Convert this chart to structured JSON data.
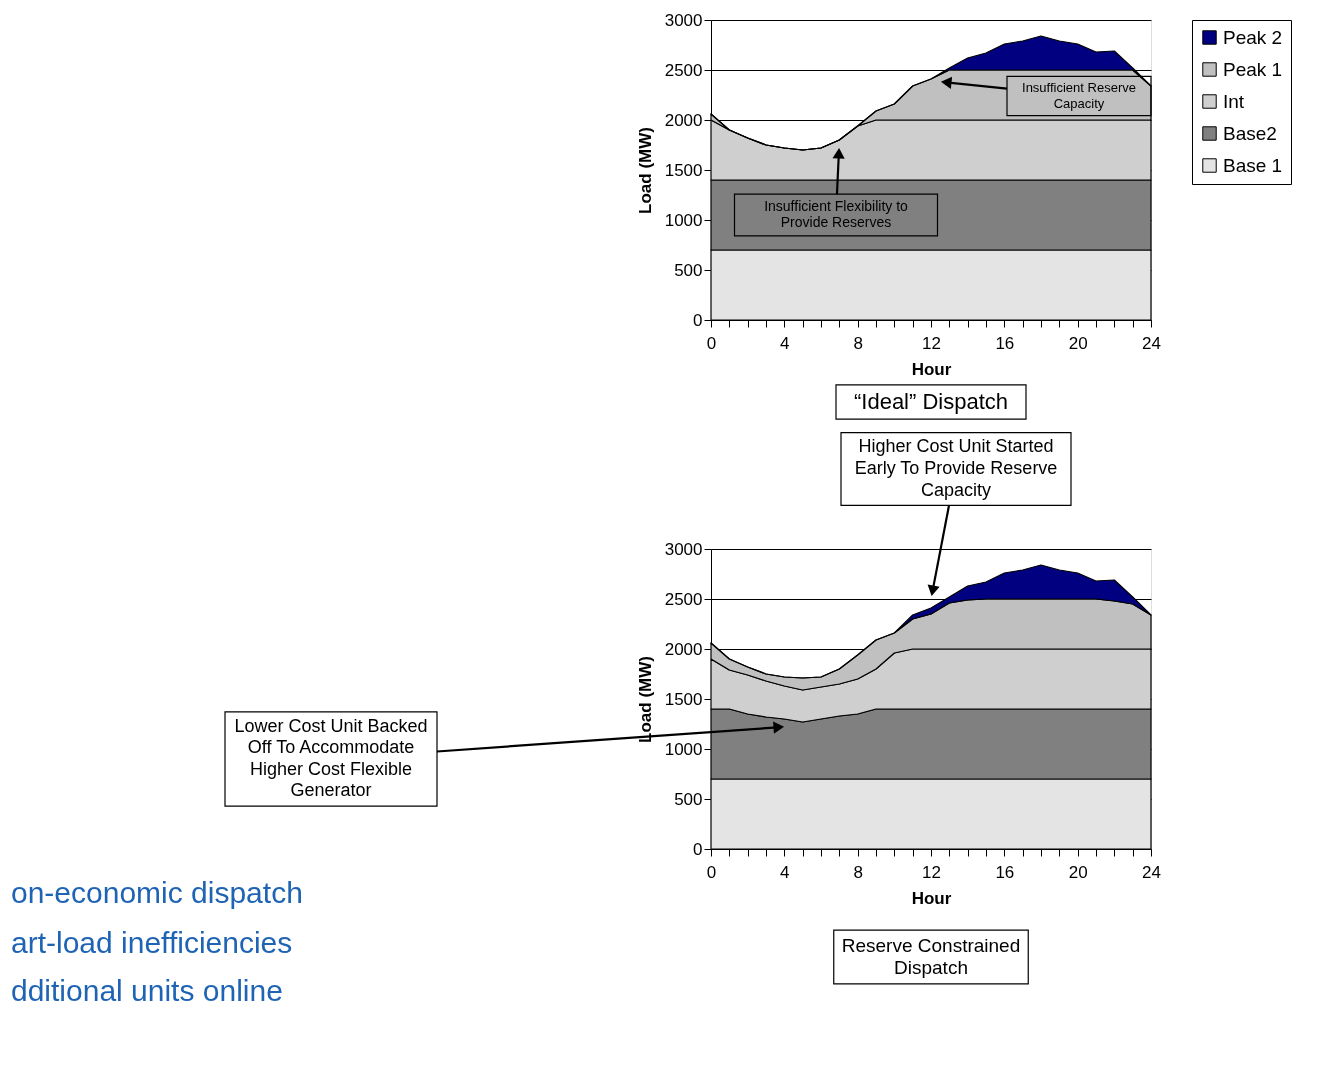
{
  "chart_data": [
    {
      "type": "area",
      "title": "“Ideal” Dispatch",
      "xlabel": "Hour",
      "ylabel": "Load (MW)",
      "stacked": true,
      "legend": "right",
      "grid": "y",
      "x": [
        0,
        1,
        2,
        3,
        4,
        5,
        6,
        7,
        8,
        9,
        10,
        11,
        12,
        13,
        14,
        15,
        16,
        17,
        18,
        19,
        20,
        21,
        22,
        23,
        24
      ],
      "xlim": [
        0,
        24
      ],
      "xticks": [
        0,
        {
          "value": 1,
          "label": null
        },
        {
          "value": 2,
          "label": null
        },
        {
          "value": 3,
          "label": null
        },
        4,
        {
          "value": 5,
          "label": null
        },
        {
          "value": 6,
          "label": null
        },
        {
          "value": 7,
          "label": null
        },
        8,
        {
          "value": 9,
          "label": null
        },
        {
          "value": 10,
          "label": null
        },
        {
          "value": 11,
          "label": null
        },
        12,
        {
          "value": 13,
          "label": null
        },
        {
          "value": 14,
          "label": null
        },
        {
          "value": 15,
          "label": null
        },
        16,
        {
          "value": 17,
          "label": null
        },
        {
          "value": 18,
          "label": null
        },
        {
          "value": 19,
          "label": null
        },
        20,
        {
          "value": 21,
          "label": null
        },
        {
          "value": 22,
          "label": null
        },
        {
          "value": 23,
          "label": null
        },
        24
      ],
      "ylim": [
        0,
        3000
      ],
      "yticks": [
        0,
        500,
        1000,
        1500,
        2000,
        2500,
        3000
      ],
      "series": [
        {
          "name": "Base 1",
          "color": "#e4e4e4",
          "values": [
            700,
            700,
            700,
            700,
            700,
            700,
            700,
            700,
            700,
            700,
            700,
            700,
            700,
            700,
            700,
            700,
            700,
            700,
            700,
            700,
            700,
            700,
            700,
            700,
            700
          ]
        },
        {
          "name": "Base2",
          "color": "#808080",
          "values": [
            700,
            700,
            700,
            700,
            700,
            700,
            700,
            700,
            700,
            700,
            700,
            700,
            700,
            700,
            700,
            700,
            700,
            700,
            700,
            700,
            700,
            700,
            700,
            700,
            700
          ]
        },
        {
          "name": "Int",
          "color": "#cfcfcf",
          "values": [
            600,
            500,
            420,
            350,
            320,
            300,
            320,
            400,
            540,
            600,
            600,
            600,
            600,
            600,
            600,
            600,
            600,
            600,
            600,
            600,
            600,
            600,
            600,
            600,
            600
          ]
        },
        {
          "name": "Peak 1",
          "color": "#c0c0c0",
          "values": [
            60,
            0,
            0,
            0,
            0,
            0,
            0,
            0,
            0,
            90,
            160,
            340,
            410,
            500,
            500,
            500,
            500,
            500,
            500,
            500,
            500,
            500,
            500,
            500,
            340
          ]
        },
        {
          "name": "Peak 2",
          "color": "#000080",
          "values": [
            0,
            0,
            0,
            0,
            0,
            0,
            0,
            0,
            0,
            0,
            0,
            0,
            0,
            20,
            120,
            170,
            260,
            290,
            340,
            290,
            260,
            180,
            190,
            20,
            0
          ]
        }
      ],
      "annotations": [
        "Insufficient Reserve Capacity",
        "Insufficient Flexibility to Provide Reserves"
      ]
    },
    {
      "type": "area",
      "title": "Reserve Constrained Dispatch",
      "xlabel": "Hour",
      "ylabel": "Load (MW)",
      "stacked": true,
      "grid": "y",
      "x": [
        0,
        1,
        2,
        3,
        4,
        5,
        6,
        7,
        8,
        9,
        10,
        11,
        12,
        13,
        14,
        15,
        16,
        17,
        18,
        19,
        20,
        21,
        22,
        23,
        24
      ],
      "xlim": [
        0,
        24
      ],
      "xticks": [
        0,
        {
          "value": 1,
          "label": null
        },
        {
          "value": 2,
          "label": null
        },
        {
          "value": 3,
          "label": null
        },
        4,
        {
          "value": 5,
          "label": null
        },
        {
          "value": 6,
          "label": null
        },
        {
          "value": 7,
          "label": null
        },
        8,
        {
          "value": 9,
          "label": null
        },
        {
          "value": 10,
          "label": null
        },
        {
          "value": 11,
          "label": null
        },
        12,
        {
          "value": 13,
          "label": null
        },
        {
          "value": 14,
          "label": null
        },
        {
          "value": 15,
          "label": null
        },
        16,
        {
          "value": 17,
          "label": null
        },
        {
          "value": 18,
          "label": null
        },
        {
          "value": 19,
          "label": null
        },
        20,
        {
          "value": 21,
          "label": null
        },
        {
          "value": 22,
          "label": null
        },
        {
          "value": 23,
          "label": null
        },
        24
      ],
      "ylim": [
        0,
        3000
      ],
      "yticks": [
        0,
        500,
        1000,
        1500,
        2000,
        2500,
        3000
      ],
      "series": [
        {
          "color": "#e4e4e4",
          "values": [
            700,
            700,
            700,
            700,
            700,
            700,
            700,
            700,
            700,
            700,
            700,
            700,
            700,
            700,
            700,
            700,
            700,
            700,
            700,
            700,
            700,
            700,
            700,
            700,
            700
          ]
        },
        {
          "color": "#808080",
          "values": [
            700,
            700,
            650,
            620,
            600,
            570,
            600,
            630,
            650,
            700,
            700,
            700,
            700,
            700,
            700,
            700,
            700,
            700,
            700,
            700,
            700,
            700,
            700,
            700,
            700
          ]
        },
        {
          "color": "#cfcfcf",
          "values": [
            500,
            390,
            390,
            360,
            330,
            320,
            320,
            320,
            350,
            400,
            560,
            600,
            600,
            600,
            600,
            600,
            600,
            600,
            600,
            600,
            600,
            600,
            600,
            600,
            600
          ]
        },
        {
          "color": "#c0c0c0",
          "values": [
            160,
            110,
            80,
            70,
            90,
            120,
            100,
            150,
            240,
            290,
            200,
            300,
            350,
            460,
            490,
            500,
            500,
            500,
            500,
            500,
            500,
            500,
            480,
            450,
            340
          ]
        },
        {
          "color": "#000080",
          "values": [
            0,
            0,
            0,
            0,
            0,
            0,
            0,
            0,
            0,
            0,
            0,
            40,
            60,
            60,
            140,
            170,
            260,
            290,
            340,
            290,
            260,
            180,
            210,
            70,
            0
          ]
        }
      ],
      "annotations": [
        "Higher Cost Unit Started Early To Provide Reserve Capacity",
        "Lower Cost Unit Backed Off To Accommodate Higher Cost Flexible Generator",
        "on-economic dispatch",
        "art-load inefficiencies",
        "dditional units online"
      ]
    }
  ]
}
